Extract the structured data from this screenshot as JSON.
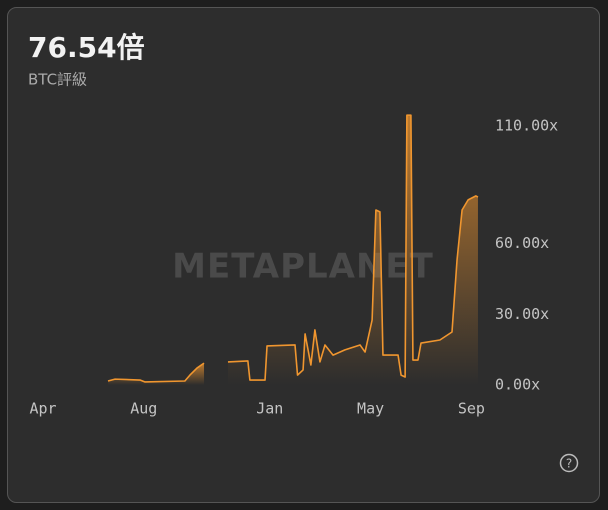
{
  "chart_data": {
    "type": "line",
    "title": "76.54倍",
    "subtitle": "BTC評級",
    "watermark": "METAPLANET",
    "color": "#f0962f",
    "x": [
      2.58,
      2.86,
      3.85,
      4.05,
      5.63,
      5.83,
      6.11,
      6.39,
      6.8,
      7.34,
      8.13,
      8.21,
      8.81,
      8.89,
      10.0,
      10.1,
      10.32,
      10.4,
      10.63,
      10.79,
      10.99,
      11.19,
      11.51,
      11.98,
      12.58,
      12.78,
      13.06,
      13.21,
      13.37,
      13.49,
      14.09,
      14.21,
      14.37,
      14.44,
      14.6,
      14.68,
      14.88,
      15.0,
      15.75,
      16.23,
      16.43,
      16.63,
      16.87,
      17.18,
      17.26
    ],
    "values": [
      1.7,
      2.5,
      2.1,
      1.3,
      1.7,
      4.2,
      7.2,
      9.3,
      null,
      9.8,
      10.2,
      2.1,
      2.1,
      16.6,
      17.0,
      4.2,
      6.4,
      21.7,
      8.5,
      23.4,
      9.8,
      17.0,
      12.7,
      14.9,
      17.0,
      14.0,
      27.6,
      74.3,
      73.5,
      12.7,
      12.7,
      4.2,
      3.4,
      114.6,
      114.6,
      10.6,
      10.6,
      17.8,
      19.1,
      22.5,
      53.1,
      74.3,
      78.6,
      80.3,
      79.8
    ],
    "xlim": [
      0,
      17.5
    ],
    "xticks": [
      {
        "value": 0,
        "label": "Apr"
      },
      {
        "value": 4,
        "label": "Aug"
      },
      {
        "value": 9,
        "label": "Jan"
      },
      {
        "value": 13,
        "label": "May"
      },
      {
        "value": 17,
        "label": "Sep"
      }
    ],
    "ylim": [
      0,
      120
    ],
    "yticks": [
      {
        "value": 0,
        "label": "0.00x"
      },
      {
        "value": 30,
        "label": "30.00x"
      },
      {
        "value": 60,
        "label": "60.00x"
      },
      {
        "value": 110,
        "label": "110.00x"
      }
    ]
  }
}
